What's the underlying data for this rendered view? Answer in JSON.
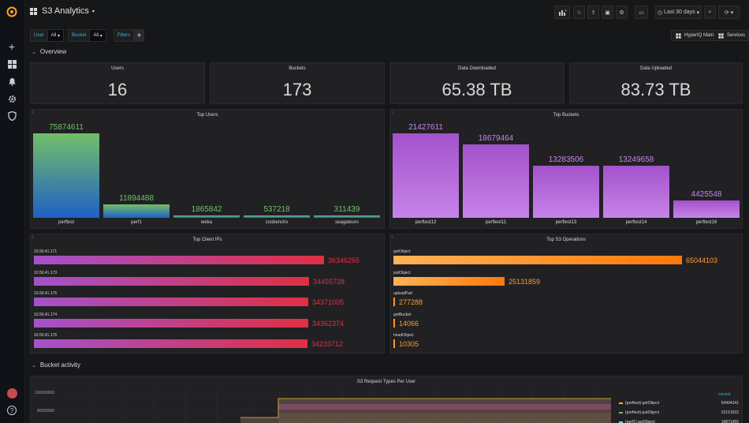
{
  "dashboard": {
    "title": "S3 Analytics",
    "time_range": "Last 30 days"
  },
  "variables": [
    {
      "label": "User",
      "value": "All"
    },
    {
      "label": "Bucket",
      "value": "All"
    }
  ],
  "filters_label": "Filters",
  "links": {
    "main": "HyperIQ Main",
    "services": "Services"
  },
  "rows": {
    "overview": "Overview",
    "bucket_activity": "Bucket activity"
  },
  "stats": [
    {
      "title": "Users",
      "value": "16"
    },
    {
      "title": "Buckets",
      "value": "173"
    },
    {
      "title": "Data Downloaded",
      "value": "65.38 TB"
    },
    {
      "title": "Data Uploaded",
      "value": "83.73 TB"
    }
  ],
  "top_users": {
    "title": "Top Users",
    "bars": [
      {
        "name": "perftest",
        "value": "75874611",
        "num": 75874611
      },
      {
        "name": "perf1",
        "value": "11894488",
        "num": 11894488
      },
      {
        "name": "weka",
        "value": "1865842",
        "num": 1865842
      },
      {
        "name": "cosbenchx",
        "value": "537218",
        "num": 537218
      },
      {
        "name": "seagateurs",
        "value": "311439",
        "num": 311439
      }
    ]
  },
  "top_buckets": {
    "title": "Top Buckets",
    "bars": [
      {
        "name": "perftest12",
        "value": "21427611",
        "num": 21427611
      },
      {
        "name": "perftest11",
        "value": "18679464",
        "num": 18679464
      },
      {
        "name": "perftest13",
        "value": "13283506",
        "num": 13283506
      },
      {
        "name": "perftest14",
        "value": "13249658",
        "num": 13249658
      },
      {
        "name": "perftest16",
        "value": "4425548",
        "num": 4425548
      }
    ]
  },
  "top_client_ips": {
    "title": "Top Client IPs",
    "bars": [
      {
        "name": "10.50.41.171",
        "value": "36346265",
        "num": 36346265
      },
      {
        "name": "10.50.41.173",
        "value": "34455728",
        "num": 34455728
      },
      {
        "name": "10.50.41.175",
        "value": "34371005",
        "num": 34371005
      },
      {
        "name": "10.50.41.174",
        "value": "34362374",
        "num": 34362374
      },
      {
        "name": "10.50.41.176",
        "value": "34233712",
        "num": 34233712
      }
    ]
  },
  "top_ops": {
    "title": "Top S3 Operations",
    "bars": [
      {
        "name": "getObject",
        "value": "65044103",
        "num": 65044103
      },
      {
        "name": "putObject",
        "value": "25131859",
        "num": 25131859
      },
      {
        "name": "uploadPart",
        "value": "277288",
        "num": 277288
      },
      {
        "name": "getBucket",
        "value": "14066",
        "num": 14066
      },
      {
        "name": "headObject",
        "value": "10305",
        "num": 10305
      }
    ]
  },
  "request_types": {
    "title": "S3 Request Types Per User",
    "y_ticks": [
      "100000000",
      "80000000"
    ],
    "legend_header": "current",
    "legend": [
      {
        "name": "{perftest}-getObject",
        "value": "54494341",
        "color": "#eab839"
      },
      {
        "name": "{perftest}-putObject",
        "value": "22151632",
        "color": "#7eb26d"
      },
      {
        "name": "{perf1}-getObject",
        "value": "10871455",
        "color": "#6ed0e0"
      }
    ]
  },
  "colors": {
    "accent_blue": "#33b5e5",
    "user_bar_top": "#73bf69",
    "user_bar_bottom": "#1f60c4",
    "bucket_bar": "#a352cc",
    "ip_bar_left": "#a352cc",
    "ip_bar_right": "#e02f44",
    "op_bar": "#ff9830"
  }
}
